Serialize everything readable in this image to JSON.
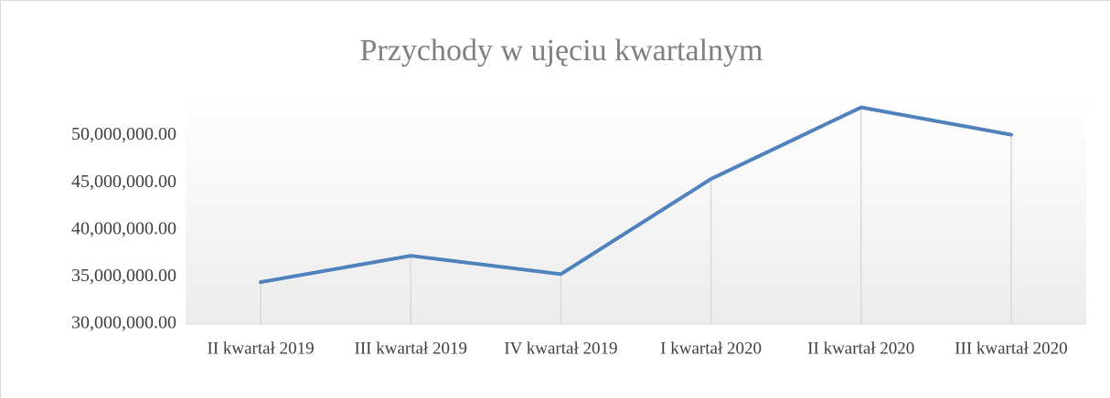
{
  "chart_data": {
    "type": "line",
    "title": "Przychody w ujęciu kwartalnym",
    "categories": [
      "II kwartał 2019",
      "III kwartał 2019",
      "IV kwartał 2019",
      "I kwartał 2020",
      "II kwartał 2020",
      "III kwartał 2020"
    ],
    "series": [
      {
        "name": "Przychody",
        "color": "#4f81bd",
        "values": [
          34450000,
          37250000,
          35300000,
          45400000,
          53000000,
          50100000
        ]
      }
    ],
    "ylim": [
      30000000,
      55000000
    ],
    "yticks": [
      {
        "value": 30000000,
        "label": "30,000,000.00"
      },
      {
        "value": 35000000,
        "label": "35,000,000.00"
      },
      {
        "value": 40000000,
        "label": "40,000,000.00"
      },
      {
        "value": 45000000,
        "label": "45,000,000.00"
      },
      {
        "value": 50000000,
        "label": "50,000,000.00"
      }
    ],
    "drop_lines": true
  }
}
